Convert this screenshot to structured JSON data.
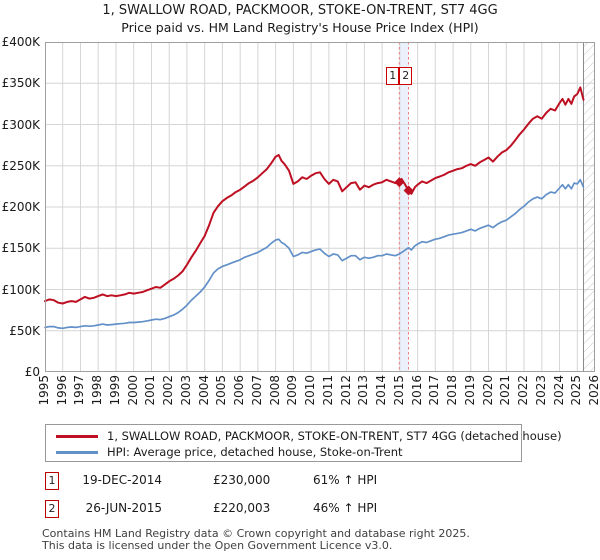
{
  "title": {
    "line1": "1, SWALLOW ROAD, PACKMOOR, STOKE-ON-TRENT, ST7 4GG",
    "line2": "Price paid vs. HM Land Registry's House Price Index (HPI)"
  },
  "chart_data": {
    "type": "line",
    "x_range": [
      1995,
      2026
    ],
    "y_range": [
      0,
      400000
    ],
    "grid": true,
    "legend_position": "bottom",
    "x_tick_labels": [
      "1995",
      "1996",
      "1997",
      "1998",
      "1999",
      "2000",
      "2001",
      "2002",
      "2003",
      "2004",
      "2005",
      "2006",
      "2007",
      "2008",
      "2009",
      "2010",
      "2011",
      "2012",
      "2013",
      "2014",
      "2015",
      "2016",
      "2017",
      "2018",
      "2019",
      "2020",
      "2021",
      "2022",
      "2023",
      "2024",
      "2025",
      "2026"
    ],
    "y_tick_labels": [
      "£400K",
      "£350K",
      "£300K",
      "£250K",
      "£200K",
      "£150K",
      "£100K",
      "£50K",
      "£0"
    ],
    "styles": {
      "grid_color": "#d6d6d6",
      "border_color": "#a0a0a0",
      "vline_color": "#f08080",
      "band_color": "#dce7f6",
      "hatch_color": "#c8c8c8",
      "today_line_color": "#8a8a8a",
      "flag_border_color": "#cc0000"
    },
    "highlight_band": [
      2014.97,
      2015.49
    ],
    "future_hatch_from": 2025.35,
    "sale_markers": [
      {
        "label": "1",
        "x": 2014.97,
        "y": 230000
      },
      {
        "label": "2",
        "x": 2015.49,
        "y": 220003
      }
    ],
    "series": [
      {
        "name": "1, SWALLOW ROAD, PACKMOOR, STOKE-ON-TRENT, ST7 4GG (detached house)",
        "color": "#be1022",
        "width": 2,
        "points": [
          [
            1995.0,
            86000
          ],
          [
            1995.25,
            88000
          ],
          [
            1995.5,
            87000
          ],
          [
            1995.75,
            84000
          ],
          [
            1996.0,
            83000
          ],
          [
            1996.25,
            85000
          ],
          [
            1996.5,
            86000
          ],
          [
            1996.75,
            85000
          ],
          [
            1997.0,
            88000
          ],
          [
            1997.25,
            91000
          ],
          [
            1997.5,
            89000
          ],
          [
            1997.75,
            90000
          ],
          [
            1998.0,
            92000
          ],
          [
            1998.25,
            94000
          ],
          [
            1998.5,
            92000
          ],
          [
            1998.75,
            93000
          ],
          [
            1999.0,
            92000
          ],
          [
            1999.25,
            93000
          ],
          [
            1999.5,
            94000
          ],
          [
            1999.75,
            96000
          ],
          [
            2000.0,
            95000
          ],
          [
            2000.25,
            96000
          ],
          [
            2000.5,
            97000
          ],
          [
            2000.75,
            99000
          ],
          [
            2001.0,
            101000
          ],
          [
            2001.25,
            103000
          ],
          [
            2001.5,
            102000
          ],
          [
            2001.75,
            106000
          ],
          [
            2002.0,
            110000
          ],
          [
            2002.25,
            113000
          ],
          [
            2002.5,
            117000
          ],
          [
            2002.75,
            122000
          ],
          [
            2003.0,
            130000
          ],
          [
            2003.25,
            139000
          ],
          [
            2003.5,
            147000
          ],
          [
            2003.75,
            156000
          ],
          [
            2004.0,
            165000
          ],
          [
            2004.25,
            178000
          ],
          [
            2004.5,
            193000
          ],
          [
            2004.75,
            201000
          ],
          [
            2005.0,
            207000
          ],
          [
            2005.25,
            211000
          ],
          [
            2005.5,
            214000
          ],
          [
            2005.75,
            218000
          ],
          [
            2006.0,
            221000
          ],
          [
            2006.25,
            225000
          ],
          [
            2006.5,
            229000
          ],
          [
            2006.75,
            232000
          ],
          [
            2007.0,
            236000
          ],
          [
            2007.25,
            241000
          ],
          [
            2007.5,
            246000
          ],
          [
            2007.75,
            253000
          ],
          [
            2008.0,
            261000
          ],
          [
            2008.17,
            263000
          ],
          [
            2008.33,
            256000
          ],
          [
            2008.5,
            252000
          ],
          [
            2008.75,
            244000
          ],
          [
            2009.0,
            228000
          ],
          [
            2009.25,
            231000
          ],
          [
            2009.5,
            236000
          ],
          [
            2009.75,
            234000
          ],
          [
            2010.0,
            238000
          ],
          [
            2010.25,
            241000
          ],
          [
            2010.5,
            242000
          ],
          [
            2010.75,
            234000
          ],
          [
            2011.0,
            228000
          ],
          [
            2011.25,
            233000
          ],
          [
            2011.5,
            231000
          ],
          [
            2011.75,
            219000
          ],
          [
            2012.0,
            224000
          ],
          [
            2012.25,
            229000
          ],
          [
            2012.5,
            230000
          ],
          [
            2012.75,
            221000
          ],
          [
            2013.0,
            226000
          ],
          [
            2013.25,
            224000
          ],
          [
            2013.5,
            227000
          ],
          [
            2013.75,
            229000
          ],
          [
            2014.0,
            230000
          ],
          [
            2014.25,
            233000
          ],
          [
            2014.5,
            231000
          ],
          [
            2014.75,
            229000
          ],
          [
            2014.97,
            230000
          ],
          [
            2015.1,
            234000
          ],
          [
            2015.3,
            227000
          ],
          [
            2015.49,
            220003
          ],
          [
            2015.65,
            216000
          ],
          [
            2015.85,
            224000
          ],
          [
            2016.0,
            227000
          ],
          [
            2016.25,
            231000
          ],
          [
            2016.5,
            229000
          ],
          [
            2016.75,
            232000
          ],
          [
            2017.0,
            235000
          ],
          [
            2017.25,
            237000
          ],
          [
            2017.5,
            239000
          ],
          [
            2017.75,
            242000
          ],
          [
            2018.0,
            244000
          ],
          [
            2018.25,
            246000
          ],
          [
            2018.5,
            247000
          ],
          [
            2018.75,
            250000
          ],
          [
            2019.0,
            252000
          ],
          [
            2019.25,
            250000
          ],
          [
            2019.5,
            254000
          ],
          [
            2019.75,
            257000
          ],
          [
            2020.0,
            260000
          ],
          [
            2020.25,
            255000
          ],
          [
            2020.5,
            261000
          ],
          [
            2020.75,
            266000
          ],
          [
            2021.0,
            269000
          ],
          [
            2021.25,
            274000
          ],
          [
            2021.5,
            281000
          ],
          [
            2021.75,
            288000
          ],
          [
            2022.0,
            294000
          ],
          [
            2022.25,
            301000
          ],
          [
            2022.5,
            307000
          ],
          [
            2022.75,
            310000
          ],
          [
            2023.0,
            307000
          ],
          [
            2023.25,
            314000
          ],
          [
            2023.5,
            319000
          ],
          [
            2023.75,
            317000
          ],
          [
            2024.0,
            326000
          ],
          [
            2024.17,
            331000
          ],
          [
            2024.33,
            324000
          ],
          [
            2024.5,
            331000
          ],
          [
            2024.67,
            325000
          ],
          [
            2024.83,
            334000
          ],
          [
            2025.0,
            337000
          ],
          [
            2025.17,
            345000
          ],
          [
            2025.35,
            330000
          ]
        ]
      },
      {
        "name": "HPI: Average price, detached house, Stoke-on-Trent",
        "color": "#6290c8",
        "width": 1.7,
        "points": [
          [
            1995.0,
            54000
          ],
          [
            1995.25,
            55000
          ],
          [
            1995.5,
            55000
          ],
          [
            1995.75,
            53500
          ],
          [
            1996.0,
            53000
          ],
          [
            1996.25,
            54000
          ],
          [
            1996.5,
            54500
          ],
          [
            1996.75,
            54000
          ],
          [
            1997.0,
            55000
          ],
          [
            1997.25,
            56000
          ],
          [
            1997.5,
            55500
          ],
          [
            1997.75,
            56000
          ],
          [
            1998.0,
            57000
          ],
          [
            1998.25,
            58000
          ],
          [
            1998.5,
            57000
          ],
          [
            1998.75,
            57500
          ],
          [
            1999.0,
            58000
          ],
          [
            1999.25,
            58500
          ],
          [
            1999.5,
            59000
          ],
          [
            1999.75,
            60000
          ],
          [
            2000.0,
            60000
          ],
          [
            2000.25,
            60500
          ],
          [
            2000.5,
            61000
          ],
          [
            2000.75,
            62000
          ],
          [
            2001.0,
            63000
          ],
          [
            2001.25,
            64000
          ],
          [
            2001.5,
            63500
          ],
          [
            2001.75,
            65000
          ],
          [
            2002.0,
            67000
          ],
          [
            2002.25,
            69000
          ],
          [
            2002.5,
            72000
          ],
          [
            2002.75,
            76000
          ],
          [
            2003.0,
            81000
          ],
          [
            2003.25,
            87000
          ],
          [
            2003.5,
            92000
          ],
          [
            2003.75,
            97000
          ],
          [
            2004.0,
            103000
          ],
          [
            2004.25,
            111000
          ],
          [
            2004.5,
            120000
          ],
          [
            2004.75,
            125000
          ],
          [
            2005.0,
            128000
          ],
          [
            2005.25,
            130000
          ],
          [
            2005.5,
            132000
          ],
          [
            2005.75,
            134000
          ],
          [
            2006.0,
            136000
          ],
          [
            2006.25,
            139000
          ],
          [
            2006.5,
            141000
          ],
          [
            2006.75,
            143000
          ],
          [
            2007.0,
            145000
          ],
          [
            2007.25,
            148000
          ],
          [
            2007.5,
            151000
          ],
          [
            2007.75,
            156000
          ],
          [
            2008.0,
            160000
          ],
          [
            2008.17,
            161000
          ],
          [
            2008.33,
            157000
          ],
          [
            2008.5,
            155000
          ],
          [
            2008.75,
            150000
          ],
          [
            2009.0,
            140000
          ],
          [
            2009.25,
            142000
          ],
          [
            2009.5,
            145000
          ],
          [
            2009.75,
            144000
          ],
          [
            2010.0,
            146000
          ],
          [
            2010.25,
            148000
          ],
          [
            2010.5,
            149000
          ],
          [
            2010.75,
            144000
          ],
          [
            2011.0,
            140000
          ],
          [
            2011.25,
            143000
          ],
          [
            2011.5,
            142000
          ],
          [
            2011.75,
            135000
          ],
          [
            2012.0,
            138000
          ],
          [
            2012.25,
            141000
          ],
          [
            2012.5,
            141000
          ],
          [
            2012.75,
            136000
          ],
          [
            2013.0,
            139000
          ],
          [
            2013.25,
            138000
          ],
          [
            2013.5,
            139000
          ],
          [
            2013.75,
            141000
          ],
          [
            2014.0,
            141000
          ],
          [
            2014.25,
            143000
          ],
          [
            2014.5,
            142000
          ],
          [
            2014.75,
            141000
          ],
          [
            2014.97,
            143000
          ],
          [
            2015.25,
            147000
          ],
          [
            2015.49,
            150700
          ],
          [
            2015.65,
            148000
          ],
          [
            2015.85,
            153000
          ],
          [
            2016.0,
            155000
          ],
          [
            2016.25,
            158000
          ],
          [
            2016.5,
            157000
          ],
          [
            2016.75,
            159000
          ],
          [
            2017.0,
            161000
          ],
          [
            2017.25,
            162000
          ],
          [
            2017.5,
            164000
          ],
          [
            2017.75,
            166000
          ],
          [
            2018.0,
            167000
          ],
          [
            2018.25,
            168000
          ],
          [
            2018.5,
            169000
          ],
          [
            2018.75,
            171000
          ],
          [
            2019.0,
            173000
          ],
          [
            2019.25,
            171000
          ],
          [
            2019.5,
            174000
          ],
          [
            2019.75,
            176000
          ],
          [
            2020.0,
            178000
          ],
          [
            2020.25,
            175000
          ],
          [
            2020.5,
            179000
          ],
          [
            2020.75,
            182000
          ],
          [
            2021.0,
            184000
          ],
          [
            2021.25,
            188000
          ],
          [
            2021.5,
            192000
          ],
          [
            2021.75,
            197000
          ],
          [
            2022.0,
            201000
          ],
          [
            2022.25,
            206000
          ],
          [
            2022.5,
            210000
          ],
          [
            2022.75,
            212000
          ],
          [
            2023.0,
            210000
          ],
          [
            2023.25,
            215000
          ],
          [
            2023.5,
            218000
          ],
          [
            2023.75,
            217000
          ],
          [
            2024.0,
            223000
          ],
          [
            2024.17,
            227000
          ],
          [
            2024.33,
            222000
          ],
          [
            2024.5,
            227000
          ],
          [
            2024.67,
            222000
          ],
          [
            2024.83,
            229000
          ],
          [
            2025.0,
            228000
          ],
          [
            2025.17,
            233000
          ],
          [
            2025.35,
            224000
          ]
        ]
      }
    ]
  },
  "transactions": [
    {
      "index": "1",
      "date": "19-DEC-2014",
      "price": "£230,000",
      "hpi_diff": "61% ↑ HPI"
    },
    {
      "index": "2",
      "date": "26-JUN-2015",
      "price": "£220,003",
      "hpi_diff": "46% ↑ HPI"
    }
  ],
  "footer": {
    "line1": "Contains HM Land Registry data © Crown copyright and database right 2025.",
    "line2": "This data is licensed under the Open Government Licence v3.0."
  }
}
